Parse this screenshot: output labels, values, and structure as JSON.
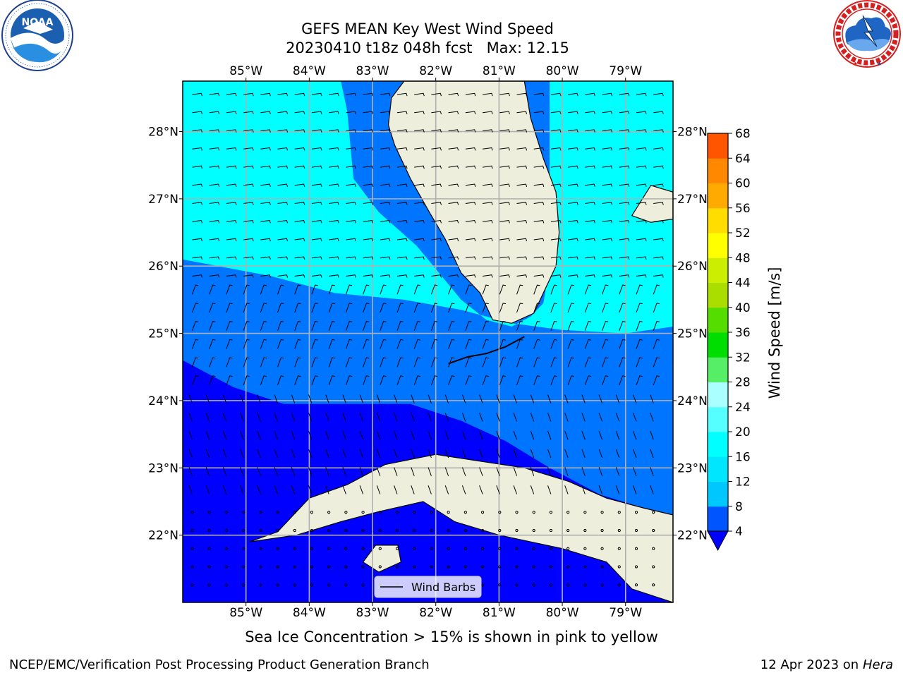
{
  "header": {
    "title": "GEFS MEAN Key West Wind Speed",
    "subtitle": "20230410 t18z 048h fcst   Max: 12.15"
  },
  "logos": {
    "left": {
      "label": "NOAA",
      "ring_text": "NATIONAL OCEANIC AND ATMOSPHERIC ADMINISTRATION · U.S. DEPARTMENT OF COMMERCE"
    },
    "right": {
      "ring_text": "NATIONAL WEATHER SERVICE"
    }
  },
  "chart_data": {
    "type": "heatmap",
    "title": "GEFS MEAN Key West Wind Speed",
    "subtitle": "20230410 t18z 048h fcst   Max: 12.15",
    "max_value": 12.15,
    "lon_range": [
      -86.0,
      -78.25
    ],
    "lat_range": [
      21.0,
      28.75
    ],
    "x_ticks": [
      -85,
      -84,
      -83,
      -82,
      -81,
      -80,
      -79
    ],
    "x_tick_labels": [
      "85°W",
      "84°W",
      "83°W",
      "82°W",
      "81°W",
      "80°W",
      "79°W"
    ],
    "y_ticks": [
      22,
      23,
      24,
      25,
      26,
      27,
      28
    ],
    "y_tick_labels": [
      "22°N",
      "23°N",
      "24°N",
      "25°N",
      "26°N",
      "27°N",
      "28°N"
    ],
    "grid": true,
    "colorbar": {
      "label": "Wind Speed [m/s]",
      "levels": [
        4,
        8,
        12,
        16,
        20,
        24,
        28,
        32,
        36,
        40,
        44,
        48,
        52,
        56,
        60,
        64,
        68
      ],
      "tick_labels": [
        "4",
        "8",
        "12",
        "16",
        "20",
        "24",
        "28",
        "32",
        "36",
        "40",
        "44",
        "48",
        "52",
        "56",
        "60",
        "64",
        "68"
      ],
      "band_colors": [
        "#0055ff",
        "#00c8ff",
        "#00e6ff",
        "#00ffff",
        "#55ffff",
        "#aaffff",
        "#55ee66",
        "#00dd00",
        "#55dd00",
        "#aadd00",
        "#ccee00",
        "#ffff00",
        "#ffdd00",
        "#ffaa00",
        "#ff8800",
        "#ff5500",
        "#ff2200",
        "#ff0000"
      ],
      "extend_min_color": "#0000ff"
    },
    "contour_fields": [
      {
        "range": "< 4 m/s",
        "color": "#0000ff"
      },
      {
        "range": "4-8 m/s",
        "color": "#0075ff"
      },
      {
        "range": "8-12 m/s",
        "color": "#00ffff"
      }
    ],
    "legend": {
      "entry": "Wind Barbs",
      "placement": "bottom-center"
    }
  },
  "colors": {
    "land": "#eeeedd",
    "coast": "#000000",
    "grid": "#b0b0b0"
  },
  "notes": {
    "ice": "Sea Ice Concentration > 15% is shown in pink to yellow"
  },
  "footer": {
    "left": "NCEP/EMC/Verification Post Processing Product Generation Branch",
    "right_date": "12 Apr 2023 on",
    "right_host": "Hera"
  }
}
